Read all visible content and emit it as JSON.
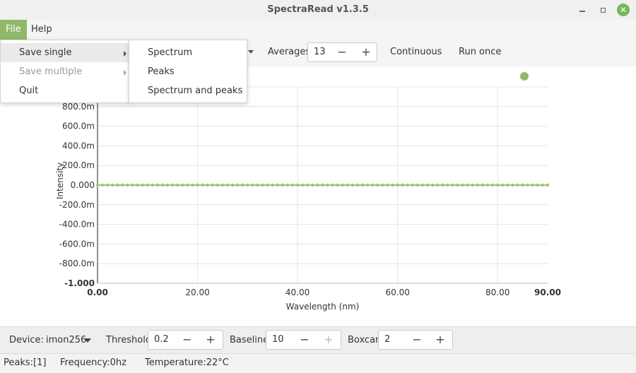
{
  "window": {
    "title": "SpectraRead v1.3.5",
    "close_symbol": "✕",
    "icons": {
      "minimize": "minimize-icon",
      "maximize": "maximize-icon",
      "close": "close-icon"
    }
  },
  "menubar": {
    "items": [
      {
        "label": "File"
      },
      {
        "label": "Help"
      }
    ]
  },
  "file_menu": {
    "items": [
      {
        "label": "Save single",
        "has_submenu": true,
        "enabled": true
      },
      {
        "label": "Save multiple",
        "has_submenu": true,
        "enabled": false
      },
      {
        "label": "Quit",
        "has_submenu": false,
        "enabled": true
      }
    ]
  },
  "save_single_submenu": {
    "items": [
      {
        "label": "Spectrum"
      },
      {
        "label": "Peaks"
      },
      {
        "label": "Spectrum and peaks"
      }
    ]
  },
  "toolbar": {
    "averages_label": "Averages:",
    "averages_value": "13",
    "continuous_label": "Continuous",
    "run_once_label": "Run once",
    "minus_symbol": "−",
    "plus_symbol": "+"
  },
  "chart_data": {
    "type": "line",
    "xlabel": "Wavelength (nm)",
    "ylabel": "Intensity",
    "xlim": [
      0,
      90
    ],
    "ylim": [
      -1.0,
      1.0
    ],
    "x_ticks": [
      "0.00",
      "20.00",
      "40.00",
      "60.00",
      "80.00",
      "90.00"
    ],
    "y_ticks": [
      "-1.000",
      "-800.0m",
      "-600.0m",
      "-400.0m",
      "-200.0m",
      "0.000",
      "200.0m",
      "400.0m",
      "600.0m",
      "800.0m"
    ],
    "series": [
      {
        "color": "#9ec27a",
        "x": [
          0,
          1,
          2,
          3,
          4,
          5,
          6,
          7,
          8,
          9,
          10,
          11,
          12,
          13,
          14,
          15,
          16,
          17,
          18,
          19,
          20,
          21,
          22,
          23,
          24,
          25,
          26,
          27,
          28,
          29,
          30,
          31,
          32,
          33,
          34,
          35,
          36,
          37,
          38,
          39,
          40,
          41,
          42,
          43,
          44,
          45,
          46,
          47,
          48,
          49,
          50,
          51,
          52,
          53,
          54,
          55,
          56,
          57,
          58,
          59,
          60,
          61,
          62,
          63,
          64,
          65,
          66,
          67,
          68,
          69,
          70,
          71,
          72,
          73,
          74,
          75,
          76,
          77,
          78,
          79,
          80,
          81,
          82,
          83,
          84,
          85,
          86,
          87,
          88,
          89,
          90
        ],
        "y": [
          0,
          0,
          0,
          0,
          0,
          0,
          0,
          0,
          0,
          0,
          0,
          0,
          0,
          0,
          0,
          0,
          0,
          0,
          0,
          0,
          0,
          0,
          0,
          0,
          0,
          0,
          0,
          0,
          0,
          0,
          0,
          0,
          0,
          0,
          0,
          0,
          0,
          0,
          0,
          0,
          0,
          0,
          0,
          0,
          0,
          0,
          0,
          0,
          0,
          0,
          0,
          0,
          0,
          0,
          0,
          0,
          0,
          0,
          0,
          0,
          0,
          0,
          0,
          0,
          0,
          0,
          0,
          0,
          0,
          0,
          0,
          0,
          0,
          0,
          0,
          0,
          0,
          0,
          0,
          0,
          0,
          0,
          0,
          0,
          0,
          0,
          0,
          0,
          0,
          0,
          0
        ]
      }
    ],
    "grid": true,
    "legend": {
      "position": "top-right",
      "color": "#8fb86b"
    },
    "color_accent": "#8fb86b"
  },
  "bottom_bar": {
    "device_label": "Device:",
    "device_value": "imon256",
    "threshold_label": "Threshold:",
    "threshold_value": "0.2",
    "baseline_label": "Baseline:",
    "baseline_value": "10",
    "boxcar_label": "Boxcar:",
    "boxcar_value": "2"
  },
  "status": {
    "peaks": "Peaks:[1]",
    "frequency": "Frequency:0hz",
    "temperature": "Temperature:22°C"
  }
}
